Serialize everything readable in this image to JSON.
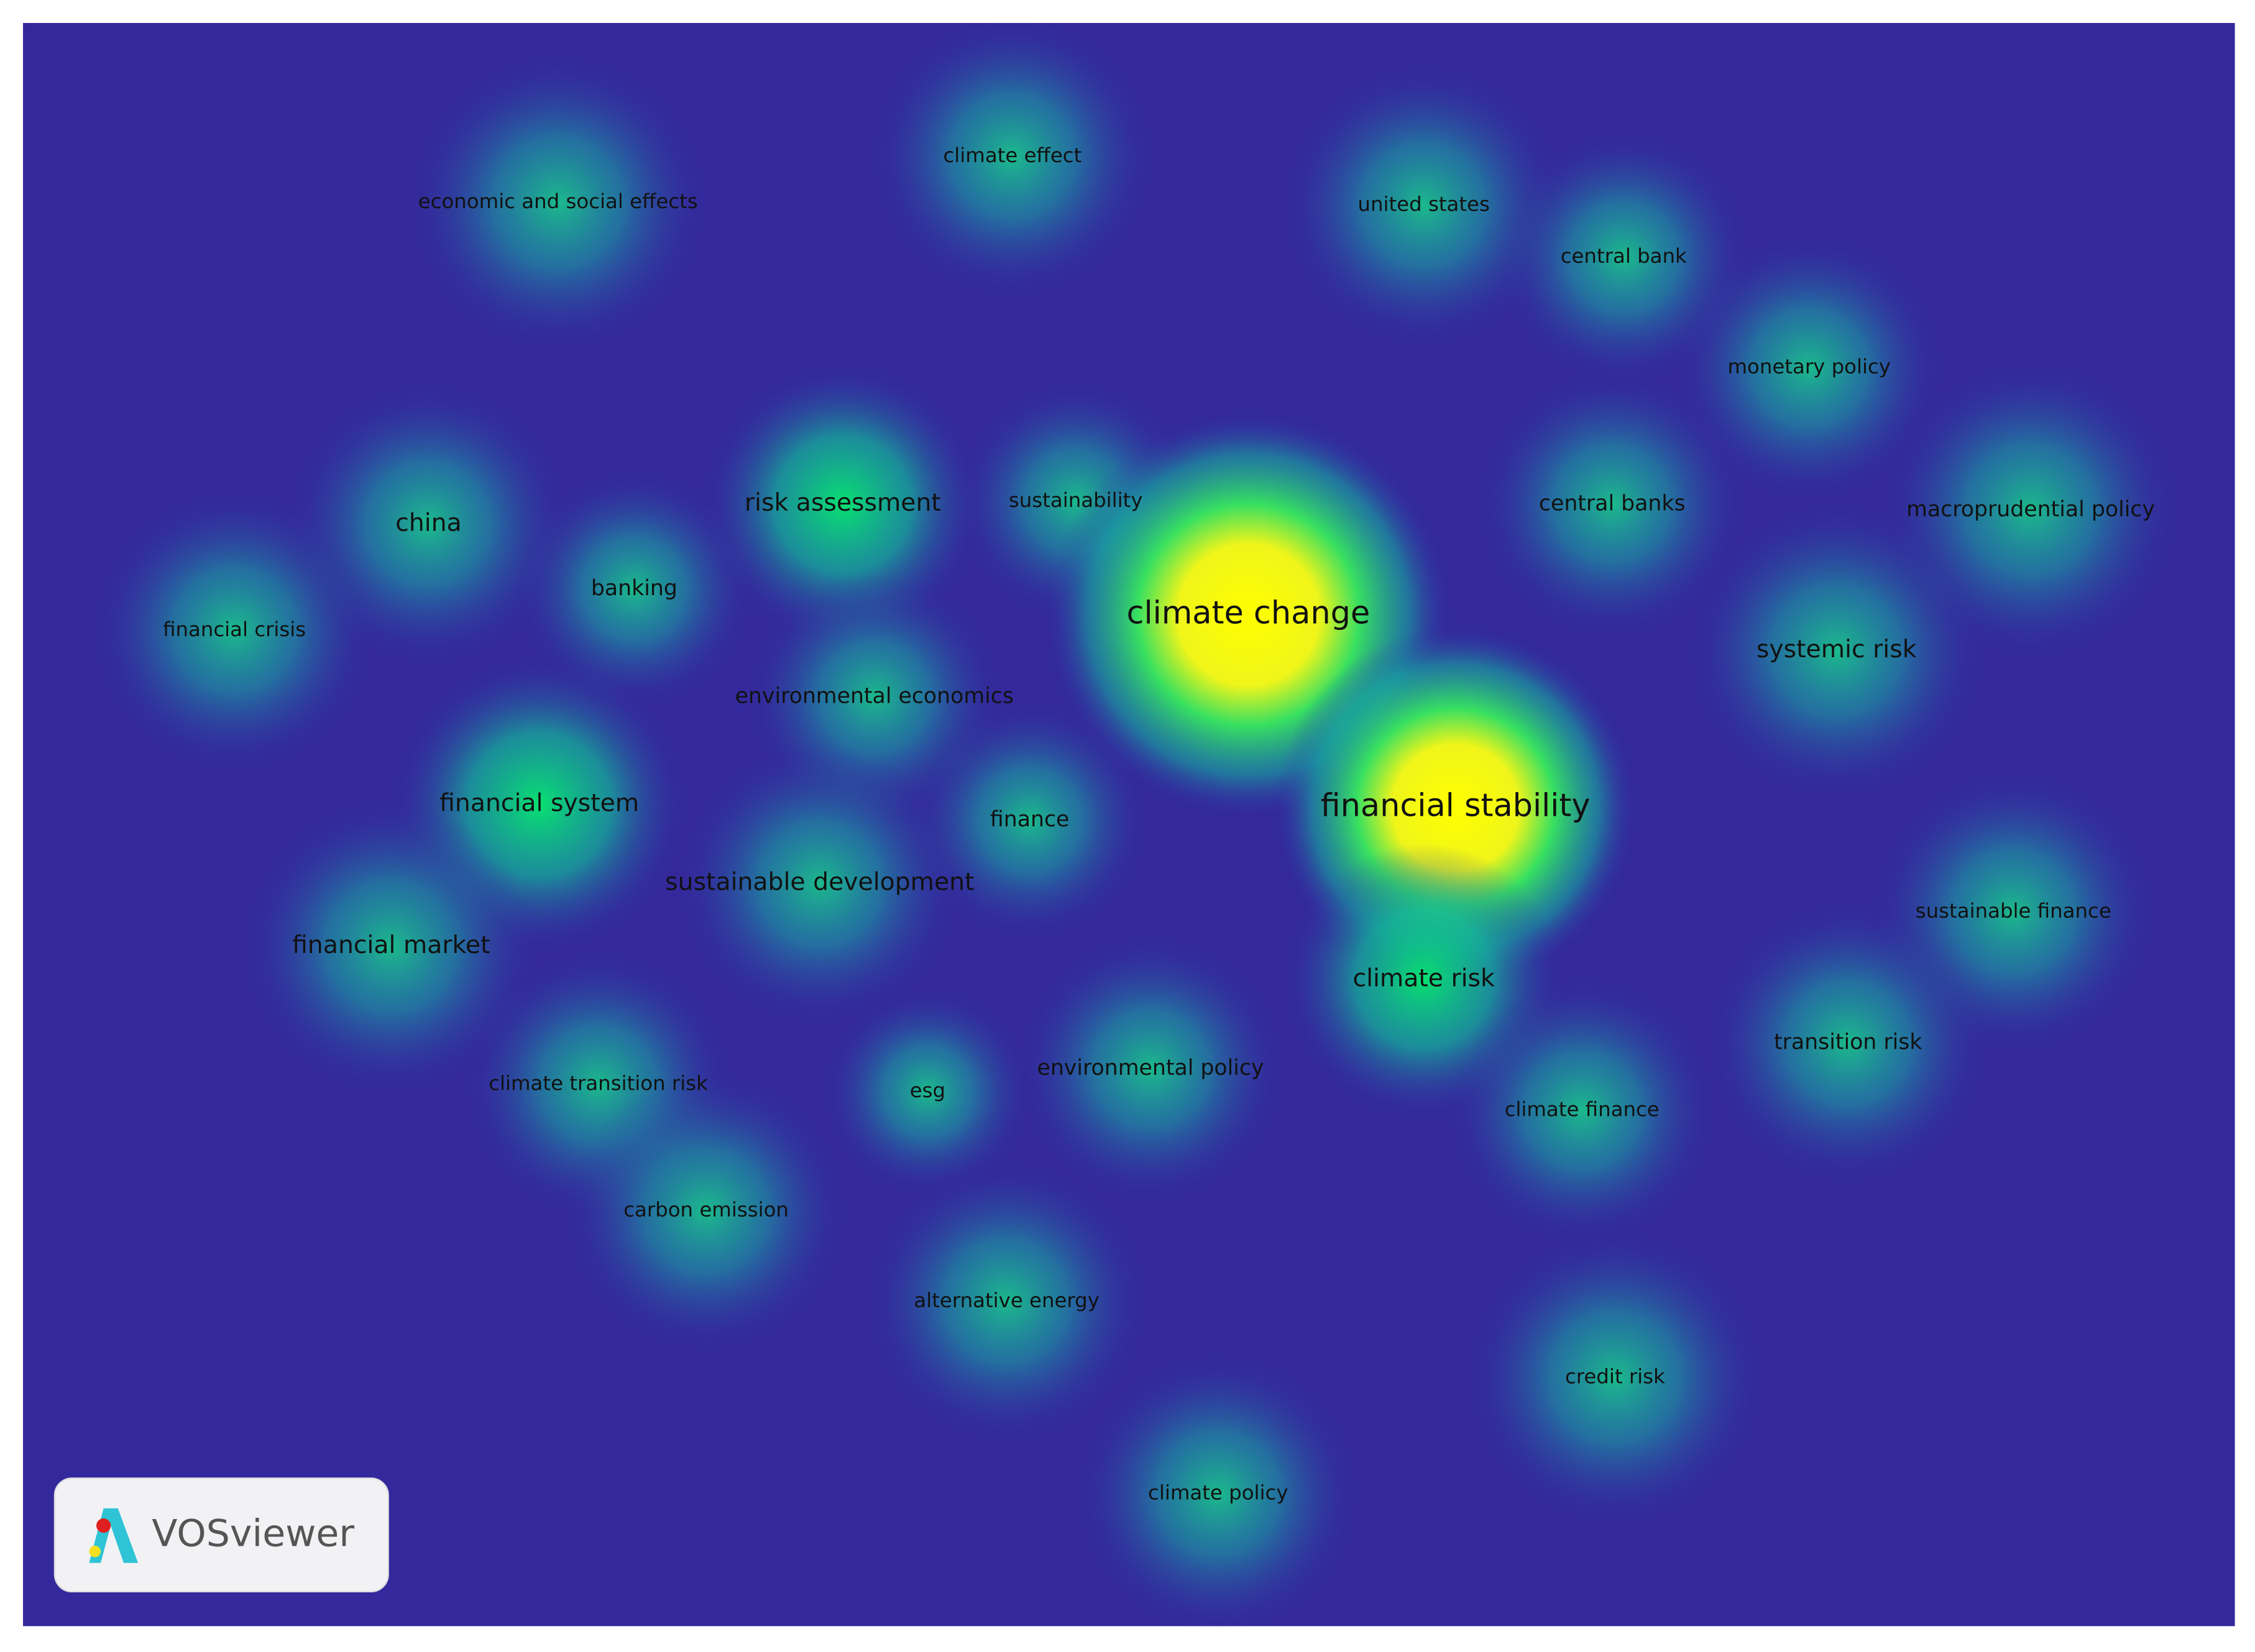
{
  "map": {
    "labels": [
      "economic and social effects",
      "climate effect",
      "united states",
      "central bank",
      "monetary policy",
      "china",
      "risk assessment",
      "sustainability",
      "central banks",
      "macroprudential policy",
      "banking",
      "financial crisis",
      "climate change",
      "systemic risk",
      "environmental economics",
      "financial system",
      "financial stability",
      "finance",
      "sustainable development",
      "sustainable finance",
      "financial market",
      "climate risk",
      "transition risk",
      "climate transition risk",
      "esg",
      "environmental policy",
      "climate finance",
      "carbon emission",
      "alternative energy",
      "credit risk",
      "climate policy"
    ]
  },
  "logo": {
    "text": "VOSviewer"
  }
}
